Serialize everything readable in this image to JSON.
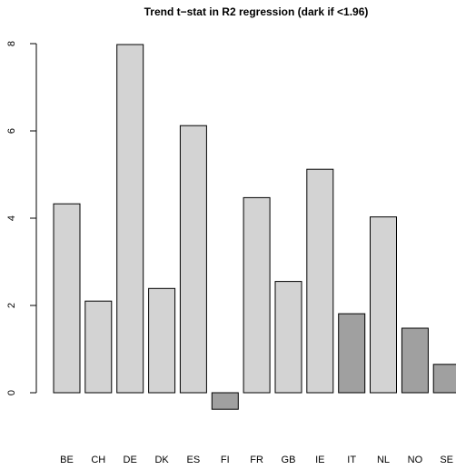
{
  "chart_data": {
    "type": "bar",
    "title": "Trend t−stat in R2 regression (dark if <1.96)",
    "xlabel": "",
    "ylabel": "",
    "categories": [
      "BE",
      "CH",
      "DE",
      "DK",
      "ES",
      "FI",
      "FR",
      "GB",
      "IE",
      "IT",
      "NL",
      "NO",
      "SE"
    ],
    "values": [
      4.33,
      2.1,
      7.98,
      2.39,
      6.12,
      -0.38,
      4.47,
      2.55,
      5.12,
      1.81,
      4.03,
      1.48,
      0.65
    ],
    "threshold": 1.96,
    "ylim": [
      -0.4,
      8.0
    ],
    "yticks": [
      0,
      2,
      4,
      6,
      8
    ],
    "colors": {
      "light": "#d3d3d3",
      "dark": "#a0a0a0"
    }
  }
}
